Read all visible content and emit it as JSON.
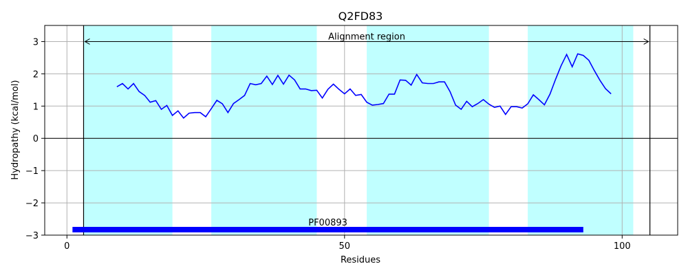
{
  "chart_data": {
    "type": "line",
    "title": "Q2FD83",
    "xlabel": "Residues",
    "ylabel": "Hydropathy (kcal/mol)",
    "xlim": [
      -4,
      110
    ],
    "ylim": [
      -3,
      3.5
    ],
    "xticks": [
      0,
      50,
      100
    ],
    "yticks": [
      -3,
      -2,
      -1,
      0,
      1,
      2,
      3
    ],
    "grid": true,
    "colors": {
      "line": "#0000ff",
      "band": "#c0ffff",
      "domain_bar": "#0000ff",
      "zero_line": "#000000",
      "grid": "#b0b0b0"
    },
    "shaded_regions": [
      [
        3,
        19
      ],
      [
        26,
        45
      ],
      [
        54,
        76
      ],
      [
        83,
        102
      ]
    ],
    "alignment_region": {
      "label": "Alignment region",
      "start": 3,
      "end": 105,
      "y": 3
    },
    "domain": {
      "label": "PF00893",
      "start": 1,
      "end": 93,
      "y": -2.83
    },
    "series": [
      {
        "x": [
          9,
          10,
          11,
          12,
          13,
          14,
          15,
          16,
          17,
          18,
          19,
          20,
          21,
          22,
          23,
          24,
          25,
          26,
          27,
          28,
          29,
          30,
          31,
          32,
          33,
          34,
          35,
          36,
          37,
          38,
          39,
          40,
          41,
          42,
          43,
          44,
          45,
          46,
          47,
          48,
          49,
          50,
          51,
          52,
          53,
          54,
          55,
          56,
          57,
          58,
          59,
          60,
          61,
          62,
          63,
          64,
          65,
          66,
          67,
          68,
          69,
          70,
          71,
          72,
          73,
          74,
          75,
          76,
          77,
          78,
          79,
          80,
          81,
          82,
          83,
          84,
          85,
          86,
          87,
          88,
          89,
          90,
          91,
          92,
          93,
          94,
          95,
          96,
          97,
          98
        ],
        "values": [
          1.6,
          1.7,
          1.53,
          1.7,
          1.45,
          1.33,
          1.12,
          1.17,
          0.9,
          1.02,
          0.71,
          0.85,
          0.63,
          0.78,
          0.8,
          0.8,
          0.67,
          0.92,
          1.18,
          1.07,
          0.8,
          1.08,
          1.2,
          1.33,
          1.7,
          1.66,
          1.7,
          1.93,
          1.67,
          1.95,
          1.68,
          1.96,
          1.81,
          1.53,
          1.53,
          1.48,
          1.49,
          1.25,
          1.52,
          1.68,
          1.52,
          1.38,
          1.53,
          1.33,
          1.36,
          1.12,
          1.03,
          1.05,
          1.08,
          1.37,
          1.37,
          1.81,
          1.8,
          1.65,
          1.98,
          1.72,
          1.7,
          1.7,
          1.75,
          1.75,
          1.45,
          1.03,
          0.9,
          1.15,
          0.98,
          1.08,
          1.2,
          1.06,
          0.96,
          1.0,
          0.74,
          0.98,
          0.98,
          0.94,
          1.07,
          1.35,
          1.2,
          1.04,
          1.37,
          1.83,
          2.25,
          2.6,
          2.22,
          2.62,
          2.57,
          2.42,
          2.1,
          1.8,
          1.54,
          1.38
        ]
      }
    ]
  }
}
